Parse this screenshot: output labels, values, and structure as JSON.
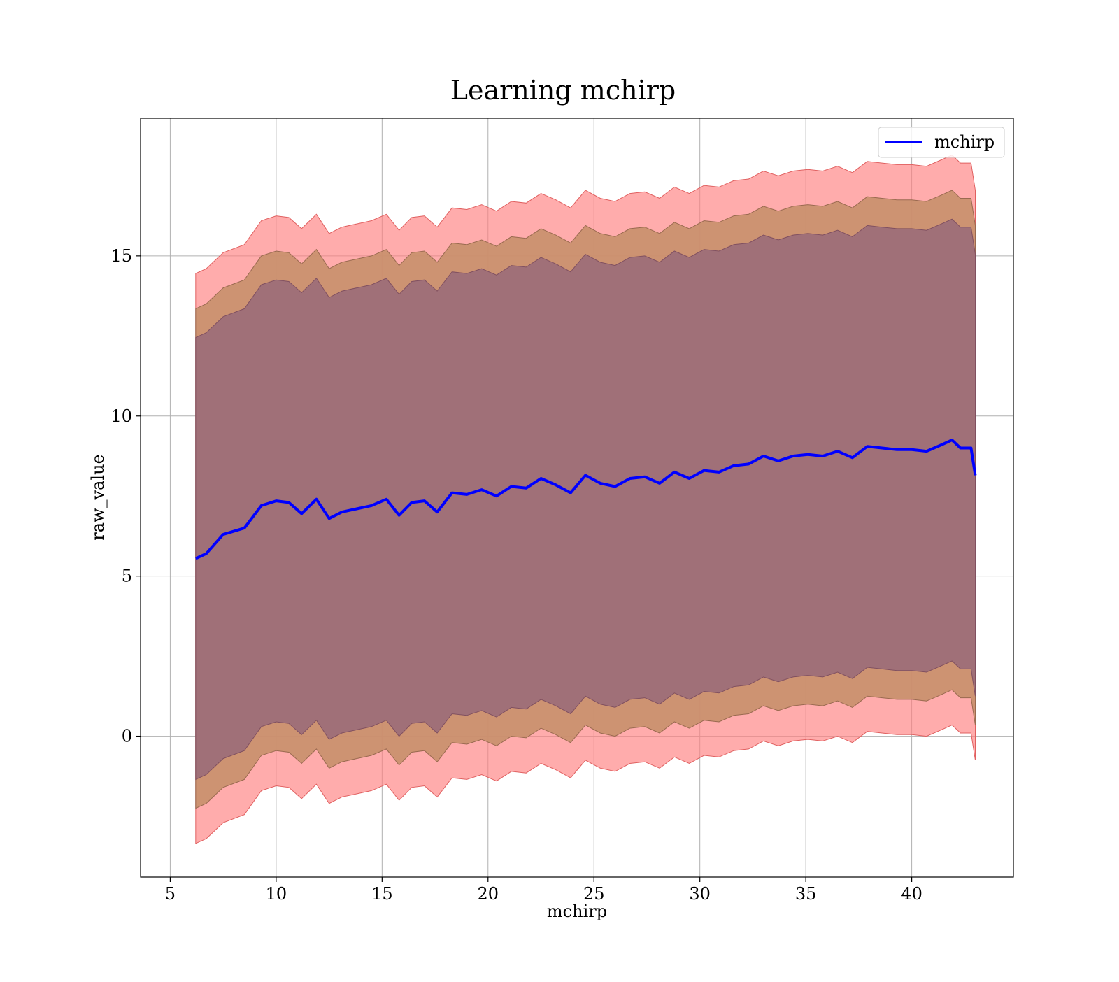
{
  "chart_data": {
    "type": "area",
    "title": "Learning mchirp",
    "xlabel": "mchirp",
    "ylabel": "raw_value",
    "xlim": [
      3.6,
      44.8
    ],
    "ylim": [
      -4.4,
      19.3
    ],
    "xticks": [
      5,
      10,
      15,
      20,
      25,
      30,
      35,
      40
    ],
    "yticks": [
      0,
      5,
      10,
      15
    ],
    "grid": true,
    "legend": {
      "position": "top-right",
      "entries": [
        "mchirp"
      ]
    },
    "colors": {
      "mean": "#0000ff",
      "band_outer": "#ff8080",
      "band_middle": "#c8906c",
      "band_inner": "#a07078",
      "grid": "#b0b0b0"
    },
    "x": [
      6.2,
      6.7,
      7.5,
      8.5,
      9.3,
      10.0,
      10.6,
      11.2,
      11.9,
      12.5,
      13.1,
      13.8,
      14.5,
      15.2,
      15.8,
      16.4,
      17.0,
      17.6,
      18.3,
      19.0,
      19.7,
      20.4,
      21.1,
      21.8,
      22.5,
      23.2,
      23.9,
      24.6,
      25.3,
      26.0,
      26.7,
      27.4,
      28.1,
      28.8,
      29.5,
      30.2,
      30.9,
      31.6,
      32.3,
      33.0,
      33.7,
      34.4,
      35.1,
      35.8,
      36.5,
      37.2,
      37.9,
      38.6,
      39.3,
      40.0,
      40.7,
      41.4,
      41.9,
      42.3,
      42.8,
      43.0
    ],
    "series": [
      {
        "name": "mchirp",
        "role": "mean",
        "values": [
          5.55,
          5.7,
          6.3,
          6.5,
          7.2,
          7.35,
          7.3,
          6.95,
          7.4,
          6.8,
          7.0,
          7.1,
          7.2,
          7.4,
          6.9,
          7.3,
          7.35,
          7.0,
          7.6,
          7.55,
          7.7,
          7.5,
          7.8,
          7.75,
          8.05,
          7.85,
          7.6,
          8.15,
          7.9,
          7.8,
          8.05,
          8.1,
          7.9,
          8.25,
          8.05,
          8.3,
          8.25,
          8.45,
          8.5,
          8.75,
          8.6,
          8.75,
          8.8,
          8.75,
          8.9,
          8.7,
          9.05,
          9.0,
          8.95,
          8.95,
          8.9,
          9.1,
          9.25,
          9.0,
          9.0,
          8.15
        ]
      },
      {
        "role": "outer_upper",
        "values": [
          14.45,
          14.6,
          15.1,
          15.35,
          16.1,
          16.25,
          16.2,
          15.85,
          16.3,
          15.7,
          15.9,
          16.0,
          16.1,
          16.3,
          15.8,
          16.2,
          16.25,
          15.9,
          16.5,
          16.45,
          16.6,
          16.4,
          16.7,
          16.65,
          16.95,
          16.75,
          16.5,
          17.05,
          16.8,
          16.7,
          16.95,
          17.0,
          16.8,
          17.15,
          16.95,
          17.2,
          17.15,
          17.35,
          17.4,
          17.65,
          17.5,
          17.65,
          17.7,
          17.65,
          17.8,
          17.6,
          17.95,
          17.9,
          17.85,
          17.85,
          17.8,
          18.0,
          18.15,
          17.9,
          17.9,
          17.05
        ]
      },
      {
        "role": "middle_upper",
        "values": [
          13.35,
          13.5,
          14.0,
          14.25,
          15.0,
          15.15,
          15.1,
          14.75,
          15.2,
          14.6,
          14.8,
          14.9,
          15.0,
          15.2,
          14.7,
          15.1,
          15.15,
          14.8,
          15.4,
          15.35,
          15.5,
          15.3,
          15.6,
          15.55,
          15.85,
          15.65,
          15.4,
          15.95,
          15.7,
          15.6,
          15.85,
          15.9,
          15.7,
          16.05,
          15.85,
          16.1,
          16.05,
          16.25,
          16.3,
          16.55,
          16.4,
          16.55,
          16.6,
          16.55,
          16.7,
          16.5,
          16.85,
          16.8,
          16.75,
          16.75,
          16.7,
          16.9,
          17.05,
          16.8,
          16.8,
          15.95
        ]
      },
      {
        "role": "inner_upper",
        "values": [
          12.45,
          12.6,
          13.1,
          13.35,
          14.1,
          14.25,
          14.2,
          13.85,
          14.3,
          13.7,
          13.9,
          14.0,
          14.1,
          14.3,
          13.8,
          14.2,
          14.25,
          13.9,
          14.5,
          14.45,
          14.6,
          14.4,
          14.7,
          14.65,
          14.95,
          14.75,
          14.5,
          15.05,
          14.8,
          14.7,
          14.95,
          15.0,
          14.8,
          15.15,
          14.95,
          15.2,
          15.15,
          15.35,
          15.4,
          15.65,
          15.5,
          15.65,
          15.7,
          15.65,
          15.8,
          15.6,
          15.95,
          15.9,
          15.85,
          15.85,
          15.8,
          16.0,
          16.15,
          15.9,
          15.9,
          15.05
        ]
      },
      {
        "role": "inner_lower",
        "values": [
          -1.35,
          -1.2,
          -0.7,
          -0.45,
          0.3,
          0.45,
          0.4,
          0.05,
          0.5,
          -0.1,
          0.1,
          0.2,
          0.3,
          0.5,
          0.0,
          0.4,
          0.45,
          0.1,
          0.7,
          0.65,
          0.8,
          0.6,
          0.9,
          0.85,
          1.15,
          0.95,
          0.7,
          1.25,
          1.0,
          0.9,
          1.15,
          1.2,
          1.0,
          1.35,
          1.15,
          1.4,
          1.35,
          1.55,
          1.6,
          1.85,
          1.7,
          1.85,
          1.9,
          1.85,
          2.0,
          1.8,
          2.15,
          2.1,
          2.05,
          2.05,
          2.0,
          2.2,
          2.35,
          2.1,
          2.1,
          1.25
        ]
      },
      {
        "role": "middle_lower",
        "values": [
          -2.25,
          -2.1,
          -1.6,
          -1.35,
          -0.6,
          -0.45,
          -0.5,
          -0.85,
          -0.4,
          -1.0,
          -0.8,
          -0.7,
          -0.6,
          -0.4,
          -0.9,
          -0.5,
          -0.45,
          -0.8,
          -0.2,
          -0.25,
          -0.1,
          -0.3,
          0.0,
          -0.05,
          0.25,
          0.05,
          -0.2,
          0.35,
          0.1,
          0.0,
          0.25,
          0.3,
          0.1,
          0.45,
          0.25,
          0.5,
          0.45,
          0.65,
          0.7,
          0.95,
          0.8,
          0.95,
          1.0,
          0.95,
          1.1,
          0.9,
          1.25,
          1.2,
          1.15,
          1.15,
          1.1,
          1.3,
          1.45,
          1.2,
          1.2,
          0.35
        ]
      },
      {
        "role": "outer_lower",
        "values": [
          -3.35,
          -3.2,
          -2.7,
          -2.45,
          -1.7,
          -1.55,
          -1.6,
          -1.95,
          -1.5,
          -2.1,
          -1.9,
          -1.8,
          -1.7,
          -1.5,
          -2.0,
          -1.6,
          -1.55,
          -1.9,
          -1.3,
          -1.35,
          -1.2,
          -1.4,
          -1.1,
          -1.15,
          -0.85,
          -1.05,
          -1.3,
          -0.75,
          -1.0,
          -1.1,
          -0.85,
          -0.8,
          -1.0,
          -0.65,
          -0.85,
          -0.6,
          -0.65,
          -0.45,
          -0.4,
          -0.15,
          -0.3,
          -0.15,
          -0.1,
          -0.15,
          0.0,
          -0.2,
          0.15,
          0.1,
          0.05,
          0.05,
          0.0,
          0.2,
          0.35,
          0.1,
          0.1,
          -0.75
        ]
      }
    ]
  }
}
